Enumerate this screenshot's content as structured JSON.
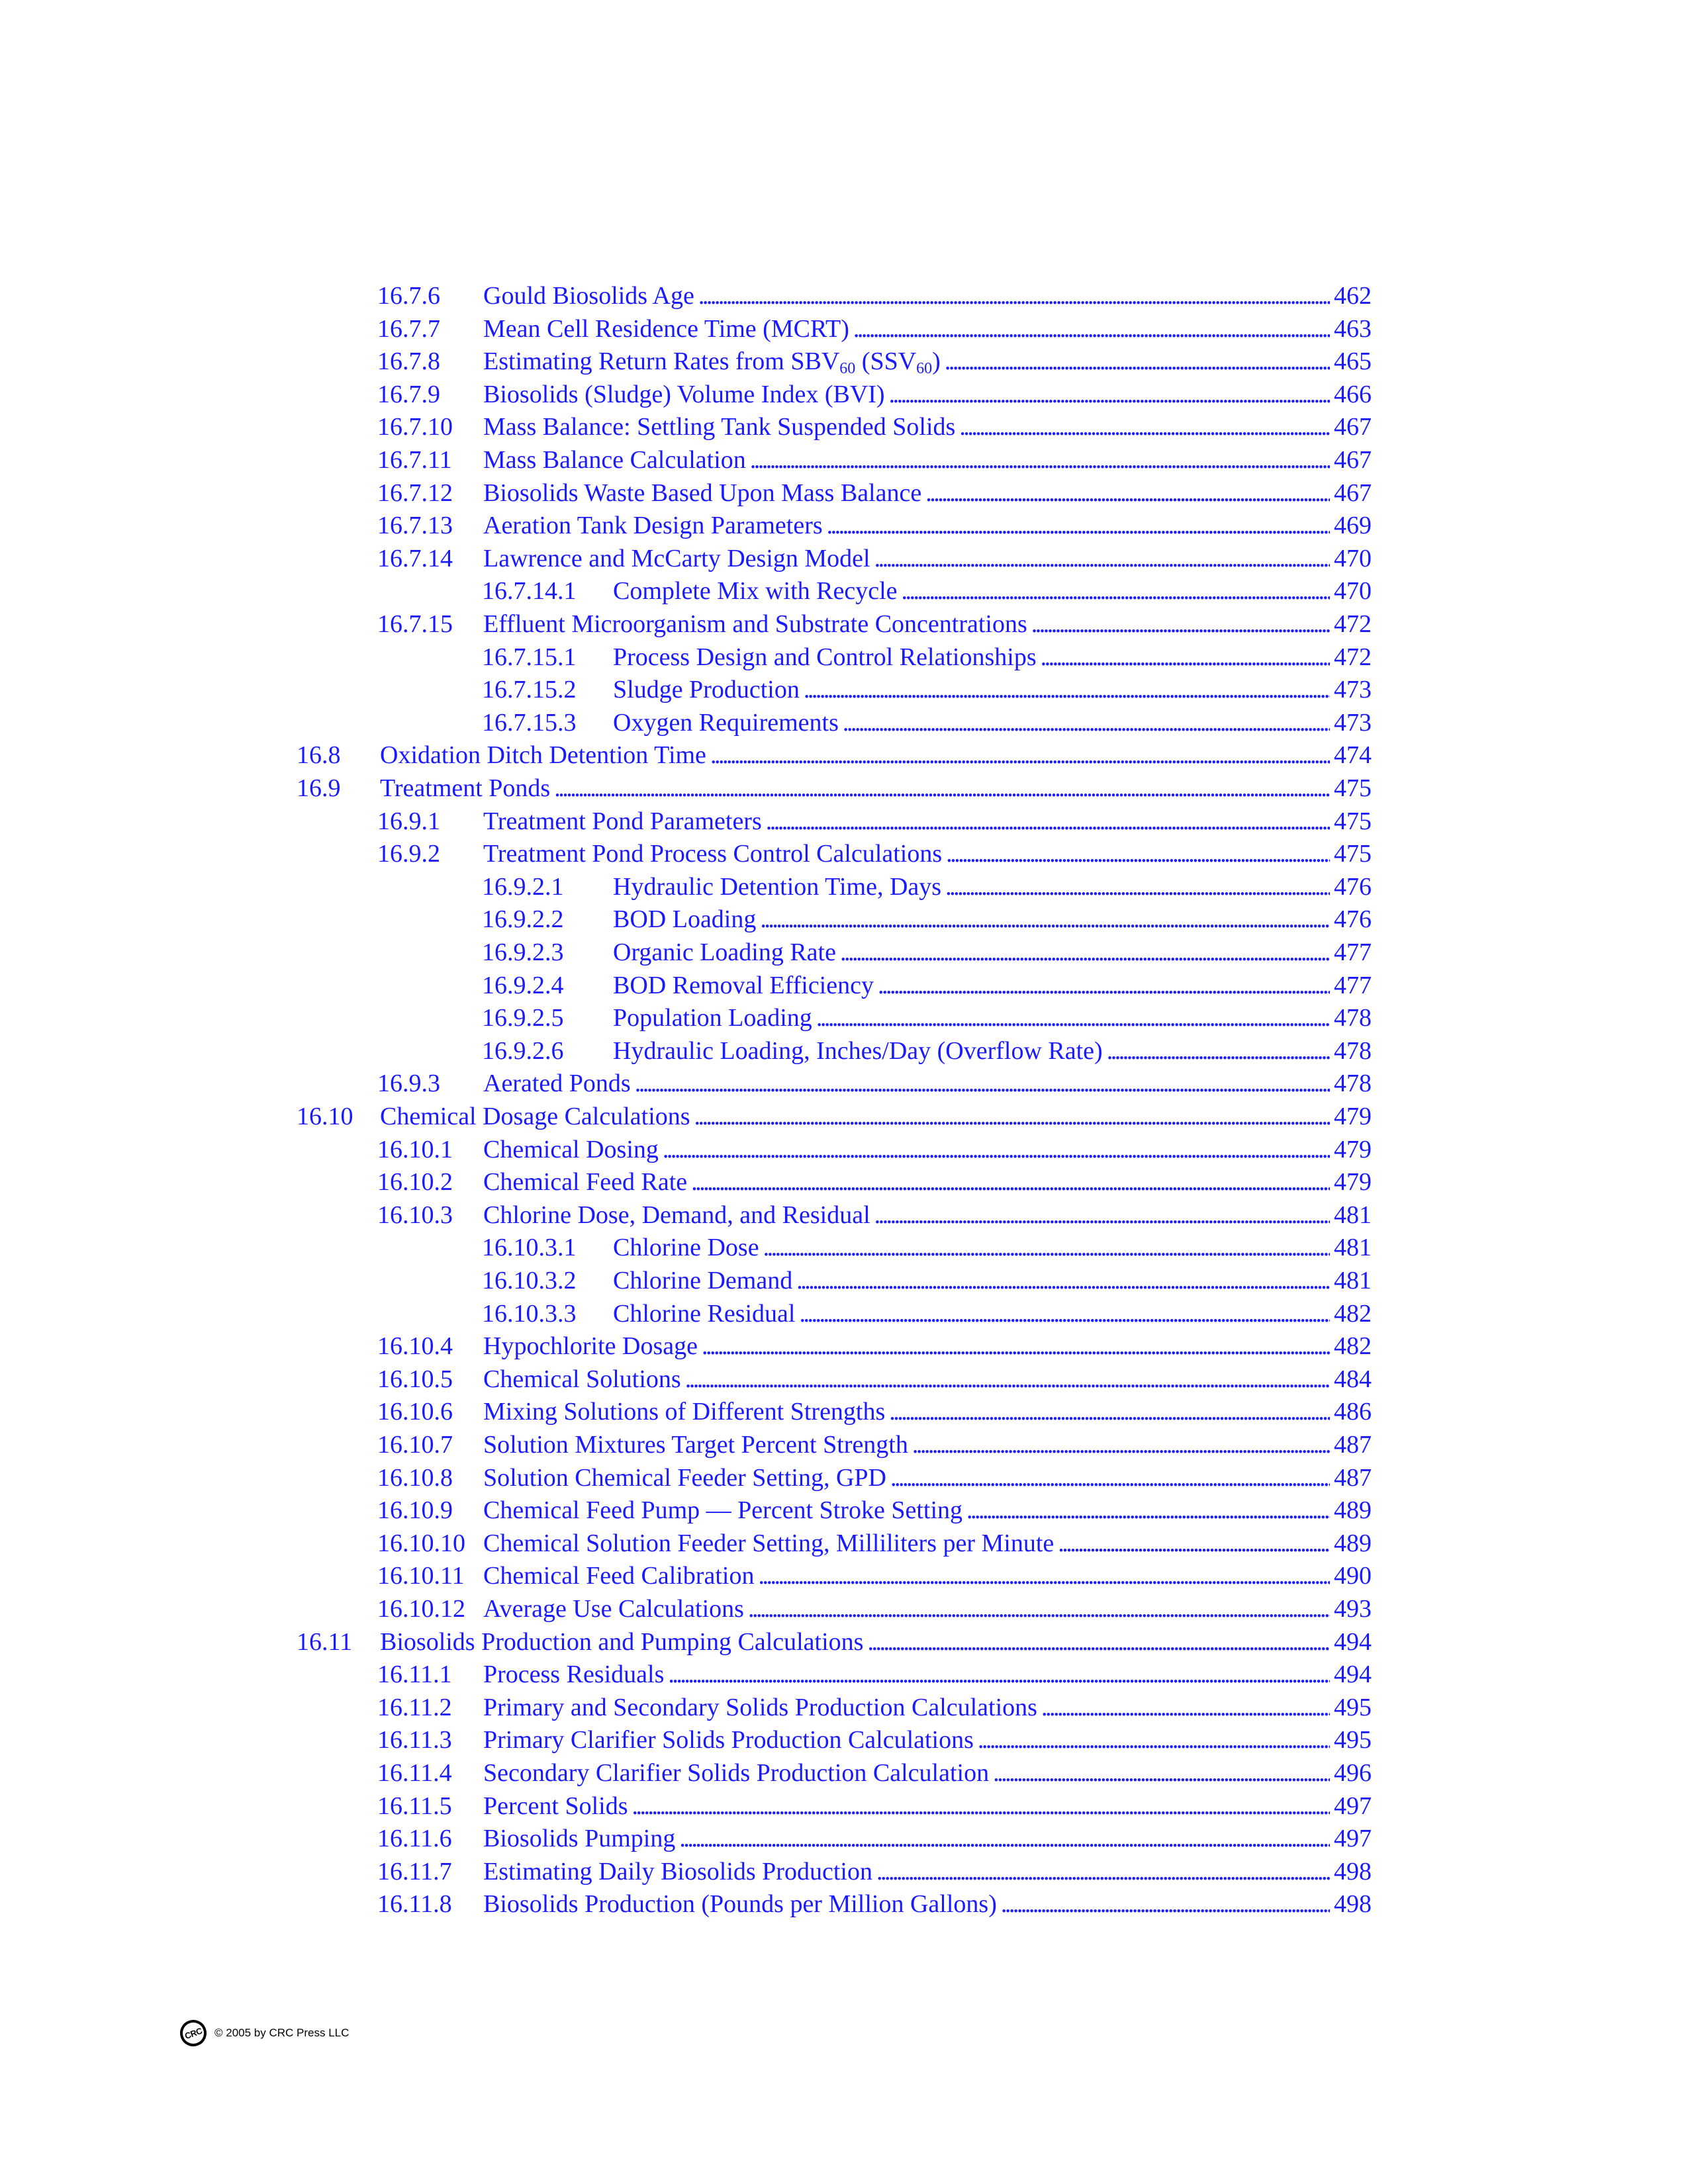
{
  "toc": [
    {
      "level": 2,
      "number": "16.7.6",
      "title": "Gould Biosolids Age",
      "page": "462"
    },
    {
      "level": 2,
      "number": "16.7.7",
      "title": "Mean Cell Residence Time (MCRT)",
      "page": "463"
    },
    {
      "level": 2,
      "number": "16.7.8",
      "title": "Estimating Return Rates from SBV",
      "sub1": "60",
      "mid": " (SSV",
      "sub2": "60",
      "tail": ")",
      "page": "465"
    },
    {
      "level": 2,
      "number": "16.7.9",
      "title": "Biosolids (Sludge) Volume Index (BVI)",
      "page": "466"
    },
    {
      "level": 2,
      "number": "16.7.10",
      "title": "Mass Balance: Settling Tank Suspended Solids",
      "page": "467"
    },
    {
      "level": 2,
      "number": "16.7.11",
      "title": "Mass Balance Calculation",
      "page": "467"
    },
    {
      "level": 2,
      "number": "16.7.12",
      "title": "Biosolids Waste Based Upon Mass Balance",
      "page": "467"
    },
    {
      "level": 2,
      "number": "16.7.13",
      "title": "Aeration Tank Design Parameters",
      "page": "469"
    },
    {
      "level": 2,
      "number": "16.7.14",
      "title": "Lawrence and McCarty Design Model",
      "page": "470"
    },
    {
      "level": 3,
      "number": "16.7.14.1",
      "title": "Complete Mix with Recycle",
      "page": "470"
    },
    {
      "level": 2,
      "number": "16.7.15",
      "title": "Effluent Microorganism and Substrate Concentrations",
      "page": "472"
    },
    {
      "level": 3,
      "number": "16.7.15.1",
      "title": "Process Design and Control Relationships",
      "page": "472"
    },
    {
      "level": 3,
      "number": "16.7.15.2",
      "title": "Sludge Production",
      "page": "473"
    },
    {
      "level": 3,
      "number": "16.7.15.3",
      "title": "Oxygen Requirements",
      "page": "473"
    },
    {
      "level": 1,
      "number": "16.8",
      "title": "Oxidation Ditch Detention Time",
      "page": "474"
    },
    {
      "level": 1,
      "number": "16.9",
      "title": "Treatment Ponds",
      "page": "475"
    },
    {
      "level": 2,
      "number": "16.9.1",
      "title": "Treatment Pond Parameters",
      "page": "475"
    },
    {
      "level": 2,
      "number": "16.9.2",
      "title": "Treatment Pond Process Control Calculations",
      "page": "475"
    },
    {
      "level": 3,
      "number": "16.9.2.1",
      "title": "Hydraulic Detention Time, Days",
      "page": "476"
    },
    {
      "level": 3,
      "number": "16.9.2.2",
      "title": "BOD Loading",
      "page": "476"
    },
    {
      "level": 3,
      "number": "16.9.2.3",
      "title": "Organic Loading Rate",
      "page": "477"
    },
    {
      "level": 3,
      "number": "16.9.2.4",
      "title": "BOD Removal Efficiency",
      "page": "477"
    },
    {
      "level": 3,
      "number": "16.9.2.5",
      "title": "Population Loading",
      "page": "478"
    },
    {
      "level": 3,
      "number": "16.9.2.6",
      "title": "Hydraulic Loading, Inches/Day (Overflow Rate)",
      "page": "478"
    },
    {
      "level": 2,
      "number": "16.9.3",
      "title": "Aerated Ponds",
      "page": "478"
    },
    {
      "level": 1,
      "number": "16.10",
      "title": "Chemical Dosage Calculations",
      "page": "479"
    },
    {
      "level": 2,
      "number": "16.10.1",
      "title": "Chemical Dosing",
      "page": "479"
    },
    {
      "level": 2,
      "number": "16.10.2",
      "title": "Chemical Feed Rate",
      "page": "479"
    },
    {
      "level": 2,
      "number": "16.10.3",
      "title": "Chlorine Dose, Demand, and Residual",
      "page": "481"
    },
    {
      "level": 3,
      "number": "16.10.3.1",
      "title": "Chlorine Dose",
      "page": "481"
    },
    {
      "level": 3,
      "number": "16.10.3.2",
      "title": "Chlorine Demand",
      "page": "481"
    },
    {
      "level": 3,
      "number": "16.10.3.3",
      "title": "Chlorine Residual",
      "page": "482"
    },
    {
      "level": 2,
      "number": "16.10.4",
      "title": "Hypochlorite Dosage",
      "page": "482"
    },
    {
      "level": 2,
      "number": "16.10.5",
      "title": "Chemical Solutions",
      "page": "484"
    },
    {
      "level": 2,
      "number": "16.10.6",
      "title": "Mixing Solutions of Different Strengths",
      "page": "486"
    },
    {
      "level": 2,
      "number": "16.10.7",
      "title": "Solution Mixtures Target Percent Strength",
      "page": "487"
    },
    {
      "level": 2,
      "number": "16.10.8",
      "title": "Solution Chemical Feeder Setting, GPD",
      "page": "487"
    },
    {
      "level": 2,
      "number": "16.10.9",
      "title": "Chemical Feed Pump — Percent Stroke Setting",
      "page": "489"
    },
    {
      "level": 2,
      "number": "16.10.10",
      "title": "Chemical Solution Feeder Setting, Milliliters per Minute",
      "page": "489"
    },
    {
      "level": 2,
      "number": "16.10.11",
      "title": "Chemical Feed Calibration",
      "page": "490"
    },
    {
      "level": 2,
      "number": "16.10.12",
      "title": "Average Use Calculations",
      "page": "493"
    },
    {
      "level": 1,
      "number": "16.11",
      "title": "Biosolids Production and Pumping Calculations",
      "page": "494"
    },
    {
      "level": 2,
      "number": "16.11.1",
      "title": "Process Residuals",
      "page": "494"
    },
    {
      "level": 2,
      "number": "16.11.2",
      "title": "Primary and Secondary Solids Production Calculations",
      "page": "495"
    },
    {
      "level": 2,
      "number": "16.11.3",
      "title": "Primary Clarifier Solids Production Calculations",
      "page": "495"
    },
    {
      "level": 2,
      "number": "16.11.4",
      "title": "Secondary Clarifier Solids Production Calculation",
      "page": "496"
    },
    {
      "level": 2,
      "number": "16.11.5",
      "title": "Percent Solids",
      "page": "497"
    },
    {
      "level": 2,
      "number": "16.11.6",
      "title": "Biosolids Pumping",
      "page": "497"
    },
    {
      "level": 2,
      "number": "16.11.7",
      "title": "Estimating Daily Biosolids Production",
      "page": "498"
    },
    {
      "level": 2,
      "number": "16.11.8",
      "title": "Biosolids Production (Pounds per Million Gallons)",
      "page": "498"
    }
  ],
  "footer": {
    "logo_text": "CRC",
    "copyright": "© 2005 by CRC Press LLC"
  },
  "colors": {
    "link": "#1a1aff",
    "footer_text": "#000000"
  }
}
